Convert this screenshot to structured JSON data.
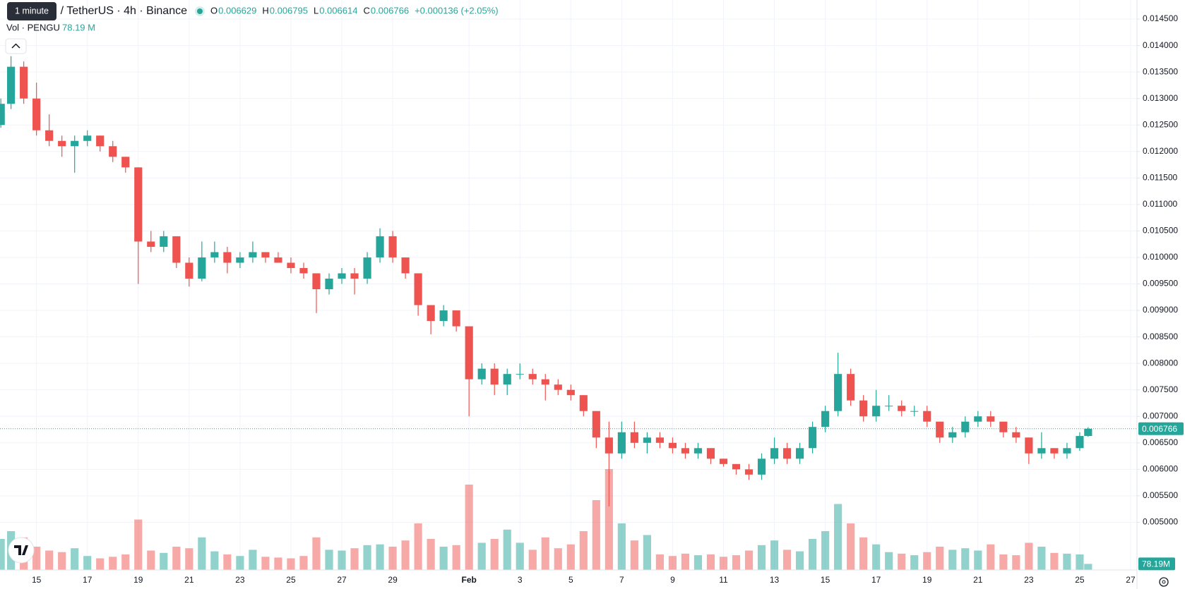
{
  "chart_data": {
    "type": "candlestick",
    "symbol": "PENGU / TetherUS · 4h · Binance",
    "tooltip": "1 minute",
    "ohlc_header": {
      "o_label": "O",
      "open": 0.006629,
      "h_label": "H",
      "high": 0.006795,
      "l_label": "L",
      "low": 0.006614,
      "c_label": "C",
      "close": 0.006766,
      "change": {
        "value": 0.000136,
        "label": "+0.000136 (+2.05%)"
      }
    },
    "volume_title": "Vol · PENGU",
    "volume_last": {
      "value": 78.19,
      "label": "78.19 M"
    },
    "volume_axis_label": {
      "value": 78.19,
      "label": "78.19M"
    },
    "last_price": {
      "value": 0.006766,
      "label": "0.006766"
    },
    "up_color": "#26a69a",
    "down_color": "#ef5350",
    "candle_fields": [
      "x",
      "open",
      "high",
      "low",
      "close",
      "volume"
    ],
    "candles": [
      [
        13.6,
        0.0125,
        0.013,
        0.01245,
        0.0129,
        400
      ],
      [
        14,
        0.0129,
        0.0138,
        0.0128,
        0.0136,
        500
      ],
      [
        14.5,
        0.0136,
        0.0137,
        0.0129,
        0.013,
        420
      ],
      [
        15,
        0.013,
        0.0133,
        0.0123,
        0.0124,
        300
      ],
      [
        15.5,
        0.0124,
        0.0127,
        0.0121,
        0.0122,
        250
      ],
      [
        16,
        0.0122,
        0.0123,
        0.0119,
        0.0121,
        230
      ],
      [
        16.5,
        0.0121,
        0.0123,
        0.0116,
        0.0122,
        280
      ],
      [
        17,
        0.0122,
        0.0124,
        0.0121,
        0.0123,
        180
      ],
      [
        17.5,
        0.0123,
        0.0123,
        0.012,
        0.0121,
        150
      ],
      [
        18,
        0.0121,
        0.0122,
        0.0118,
        0.0119,
        170
      ],
      [
        18.5,
        0.0119,
        0.0119,
        0.0116,
        0.0117,
        200
      ],
      [
        19,
        0.0117,
        0.0117,
        0.0095,
        0.0103,
        650
      ],
      [
        19.5,
        0.0103,
        0.0105,
        0.0101,
        0.0102,
        250
      ],
      [
        20,
        0.0102,
        0.0105,
        0.0101,
        0.0104,
        220
      ],
      [
        20.5,
        0.0104,
        0.0104,
        0.0098,
        0.0099,
        300
      ],
      [
        21,
        0.0099,
        0.01,
        0.00945,
        0.0096,
        280
      ],
      [
        21.5,
        0.0096,
        0.0103,
        0.00955,
        0.01,
        420
      ],
      [
        22,
        0.01,
        0.0103,
        0.0099,
        0.0101,
        240
      ],
      [
        22.5,
        0.0101,
        0.0102,
        0.0097,
        0.0099,
        200
      ],
      [
        23,
        0.0099,
        0.0101,
        0.0098,
        0.01,
        180
      ],
      [
        23.5,
        0.01,
        0.0103,
        0.0099,
        0.0101,
        260
      ],
      [
        24,
        0.0101,
        0.0101,
        0.0099,
        0.01,
        170
      ],
      [
        24.5,
        0.01,
        0.0101,
        0.0099,
        0.0099,
        160
      ],
      [
        25,
        0.0099,
        0.01,
        0.0097,
        0.0098,
        150
      ],
      [
        25.5,
        0.0098,
        0.0099,
        0.0096,
        0.0097,
        180
      ],
      [
        26,
        0.0097,
        0.0097,
        0.00895,
        0.0094,
        420
      ],
      [
        26.5,
        0.0094,
        0.0097,
        0.0093,
        0.0096,
        260
      ],
      [
        27,
        0.0096,
        0.0098,
        0.0095,
        0.0097,
        250
      ],
      [
        27.5,
        0.0097,
        0.0098,
        0.0093,
        0.0096,
        280
      ],
      [
        28,
        0.0096,
        0.0101,
        0.0095,
        0.01,
        320
      ],
      [
        28.5,
        0.01,
        0.01055,
        0.0099,
        0.0104,
        330
      ],
      [
        29,
        0.0104,
        0.0105,
        0.0099,
        0.01,
        300
      ],
      [
        29.5,
        0.01,
        0.01,
        0.0096,
        0.0097,
        380
      ],
      [
        30,
        0.0097,
        0.0097,
        0.0089,
        0.0091,
        600
      ],
      [
        30.5,
        0.0091,
        0.0091,
        0.00855,
        0.0088,
        400
      ],
      [
        31,
        0.0088,
        0.0091,
        0.0087,
        0.009,
        300
      ],
      [
        31.5,
        0.009,
        0.009,
        0.0086,
        0.0087,
        320
      ],
      [
        32,
        0.0087,
        0.0087,
        0.007,
        0.0077,
        1100
      ],
      [
        32.5,
        0.0077,
        0.008,
        0.0076,
        0.0079,
        350
      ],
      [
        33,
        0.0079,
        0.008,
        0.0074,
        0.0076,
        400
      ],
      [
        33.5,
        0.0076,
        0.0079,
        0.0074,
        0.0078,
        520
      ],
      [
        34,
        0.0078,
        0.008,
        0.0077,
        0.0078,
        350
      ],
      [
        34.5,
        0.0078,
        0.0079,
        0.0076,
        0.0077,
        260
      ],
      [
        35,
        0.0077,
        0.0078,
        0.0073,
        0.0076,
        420
      ],
      [
        35.5,
        0.0076,
        0.0077,
        0.0074,
        0.0075,
        280
      ],
      [
        36,
        0.0075,
        0.0076,
        0.0073,
        0.0074,
        330
      ],
      [
        36.5,
        0.0074,
        0.0074,
        0.007,
        0.0071,
        500
      ],
      [
        37,
        0.0071,
        0.0071,
        0.0064,
        0.0066,
        900
      ],
      [
        37.5,
        0.0066,
        0.0069,
        0.0053,
        0.0063,
        1300
      ],
      [
        38,
        0.0063,
        0.0069,
        0.0062,
        0.0067,
        600
      ],
      [
        38.5,
        0.0067,
        0.0069,
        0.0064,
        0.0065,
        380
      ],
      [
        39,
        0.0065,
        0.0067,
        0.0063,
        0.0066,
        450
      ],
      [
        39.5,
        0.0066,
        0.0067,
        0.0064,
        0.0065,
        200
      ],
      [
        40,
        0.0065,
        0.0066,
        0.0063,
        0.0064,
        180
      ],
      [
        40.5,
        0.0064,
        0.0065,
        0.0062,
        0.0063,
        210
      ],
      [
        41,
        0.0063,
        0.0065,
        0.0062,
        0.0064,
        190
      ],
      [
        41.5,
        0.0064,
        0.0064,
        0.0061,
        0.0062,
        200
      ],
      [
        42,
        0.0062,
        0.0062,
        0.00605,
        0.0061,
        170
      ],
      [
        42.5,
        0.0061,
        0.0061,
        0.0059,
        0.006,
        190
      ],
      [
        43,
        0.006,
        0.0061,
        0.0058,
        0.0059,
        250
      ],
      [
        43.5,
        0.0059,
        0.0063,
        0.0058,
        0.0062,
        320
      ],
      [
        44,
        0.0062,
        0.0066,
        0.0061,
        0.0064,
        380
      ],
      [
        44.5,
        0.0064,
        0.0065,
        0.0061,
        0.0062,
        260
      ],
      [
        45,
        0.0062,
        0.0065,
        0.0061,
        0.0064,
        240
      ],
      [
        45.5,
        0.0064,
        0.0069,
        0.0063,
        0.0068,
        400
      ],
      [
        46,
        0.0068,
        0.0072,
        0.0067,
        0.0071,
        500
      ],
      [
        46.5,
        0.0071,
        0.0082,
        0.007,
        0.0078,
        850
      ],
      [
        47,
        0.0078,
        0.0079,
        0.0072,
        0.0073,
        600
      ],
      [
        47.5,
        0.0073,
        0.0074,
        0.0069,
        0.007,
        420
      ],
      [
        48,
        0.007,
        0.0075,
        0.0069,
        0.0072,
        330
      ],
      [
        48.5,
        0.0072,
        0.0074,
        0.0071,
        0.0072,
        230
      ],
      [
        49,
        0.0072,
        0.0073,
        0.007,
        0.0071,
        210
      ],
      [
        49.5,
        0.0071,
        0.0072,
        0.007,
        0.0071,
        190
      ],
      [
        50,
        0.0071,
        0.0072,
        0.0068,
        0.0069,
        230
      ],
      [
        50.5,
        0.0069,
        0.0069,
        0.0065,
        0.0066,
        300
      ],
      [
        51,
        0.0066,
        0.0068,
        0.0065,
        0.0067,
        260
      ],
      [
        51.5,
        0.0067,
        0.007,
        0.0066,
        0.0069,
        280
      ],
      [
        52,
        0.0069,
        0.0071,
        0.0068,
        0.007,
        250
      ],
      [
        52.5,
        0.007,
        0.0071,
        0.0068,
        0.0069,
        330
      ],
      [
        53,
        0.0069,
        0.0069,
        0.0066,
        0.0067,
        200
      ],
      [
        53.5,
        0.0067,
        0.0068,
        0.0065,
        0.0066,
        190
      ],
      [
        54,
        0.0066,
        0.0066,
        0.0061,
        0.0063,
        350
      ],
      [
        54.5,
        0.0063,
        0.0067,
        0.0062,
        0.0064,
        300
      ],
      [
        55,
        0.0064,
        0.0064,
        0.0062,
        0.0063,
        220
      ],
      [
        55.5,
        0.0063,
        0.0065,
        0.0062,
        0.0064,
        210
      ],
      [
        56,
        0.0064,
        0.0067,
        0.00635,
        0.006629,
        200
      ],
      [
        56.33,
        0.006629,
        0.006795,
        0.006614,
        0.006766,
        78.19
      ]
    ],
    "xlim": [
      13.567,
      58.25
    ],
    "xticks": [
      15,
      17,
      19,
      21,
      23,
      25,
      27,
      29,
      {
        "value": 32,
        "label": "Feb"
      },
      {
        "value": 34,
        "label": "3"
      },
      {
        "value": 36,
        "label": "5"
      },
      {
        "value": 38,
        "label": "7"
      },
      {
        "value": 40,
        "label": "9"
      },
      {
        "value": 42,
        "label": "11"
      },
      {
        "value": 44,
        "label": "13"
      },
      {
        "value": 46,
        "label": "15"
      },
      {
        "value": 48,
        "label": "17"
      },
      {
        "value": 50,
        "label": "19"
      },
      {
        "value": 52,
        "label": "21"
      },
      {
        "value": 54,
        "label": "23"
      },
      {
        "value": 56,
        "label": "25"
      },
      {
        "value": 58,
        "label": "27"
      }
    ],
    "ylim": [
      0.0041,
      0.01486
    ],
    "yticks": [
      {
        "value": 0.005,
        "label": "0.005000"
      },
      {
        "value": 0.0055,
        "label": "0.005500"
      },
      {
        "value": 0.006,
        "label": "0.006000"
      },
      {
        "value": 0.0065,
        "label": "0.006500"
      },
      {
        "value": 0.007,
        "label": "0.007000"
      },
      {
        "value": 0.0075,
        "label": "0.007500"
      },
      {
        "value": 0.008,
        "label": "0.008000"
      },
      {
        "value": 0.0085,
        "label": "0.008500"
      },
      {
        "value": 0.009,
        "label": "0.009000"
      },
      {
        "value": 0.0095,
        "label": "0.009500"
      },
      {
        "value": 0.01,
        "label": "0.010000"
      },
      {
        "value": 0.0105,
        "label": "0.010500"
      },
      {
        "value": 0.011,
        "label": "0.011000"
      },
      {
        "value": 0.0115,
        "label": "0.011500"
      },
      {
        "value": 0.012,
        "label": "0.012000"
      },
      {
        "value": 0.0125,
        "label": "0.012500"
      },
      {
        "value": 0.013,
        "label": "0.013000"
      },
      {
        "value": 0.0135,
        "label": "0.013500"
      },
      {
        "value": 0.014,
        "label": "0.014000"
      },
      {
        "value": 0.0145,
        "label": "0.014500"
      }
    ],
    "vlim": [
      0,
      1500
    ],
    "grid": true
  }
}
